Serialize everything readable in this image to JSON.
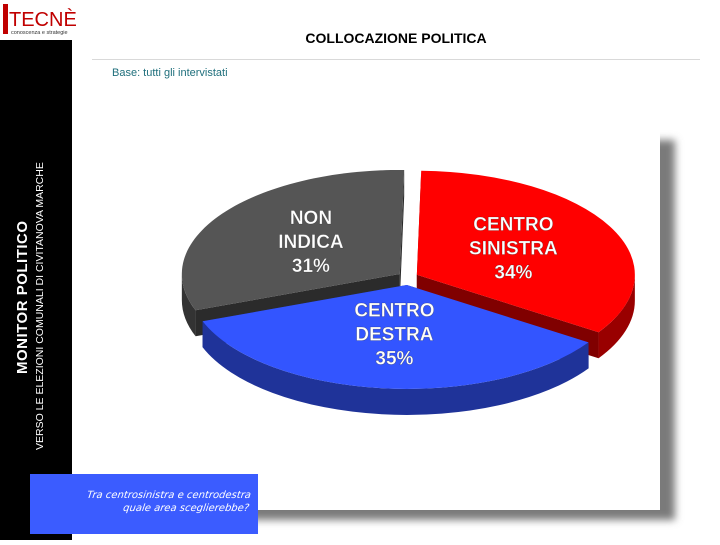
{
  "brand": {
    "name": "TECNÈ",
    "tagline": "conoscenza e strategie"
  },
  "sidebar": {
    "title": "MONITOR POLITICO",
    "subtitle": "VERSO LE ELEZIONI COMUNALI DI CIVITANOVA MARCHE"
  },
  "header": {
    "title": "COLLOCAZIONE POLITICA",
    "base": "Base: tutti gli intervistati"
  },
  "question": {
    "line1": "Tra centrosinistra e centrodestra",
    "line2": "quale area sceglierebbe?"
  },
  "colors": {
    "centro_sinistra": "#ff0000",
    "centro_destra": "#3355ff",
    "non_indica": "#555555",
    "accent": "#3b5cff"
  },
  "chart_data": {
    "type": "pie",
    "title": "COLLOCAZIONE POLITICA",
    "slices": [
      {
        "label_lines": [
          "CENTRO",
          "SINISTRA"
        ],
        "value": 34,
        "display": "34%",
        "color": "#ff0000"
      },
      {
        "label_lines": [
          "CENTRO",
          "DESTRA"
        ],
        "value": 35,
        "display": "35%",
        "color": "#3355ff"
      },
      {
        "label_lines": [
          "NON",
          "INDICA"
        ],
        "value": 31,
        "display": "31%",
        "color": "#555555"
      }
    ]
  }
}
